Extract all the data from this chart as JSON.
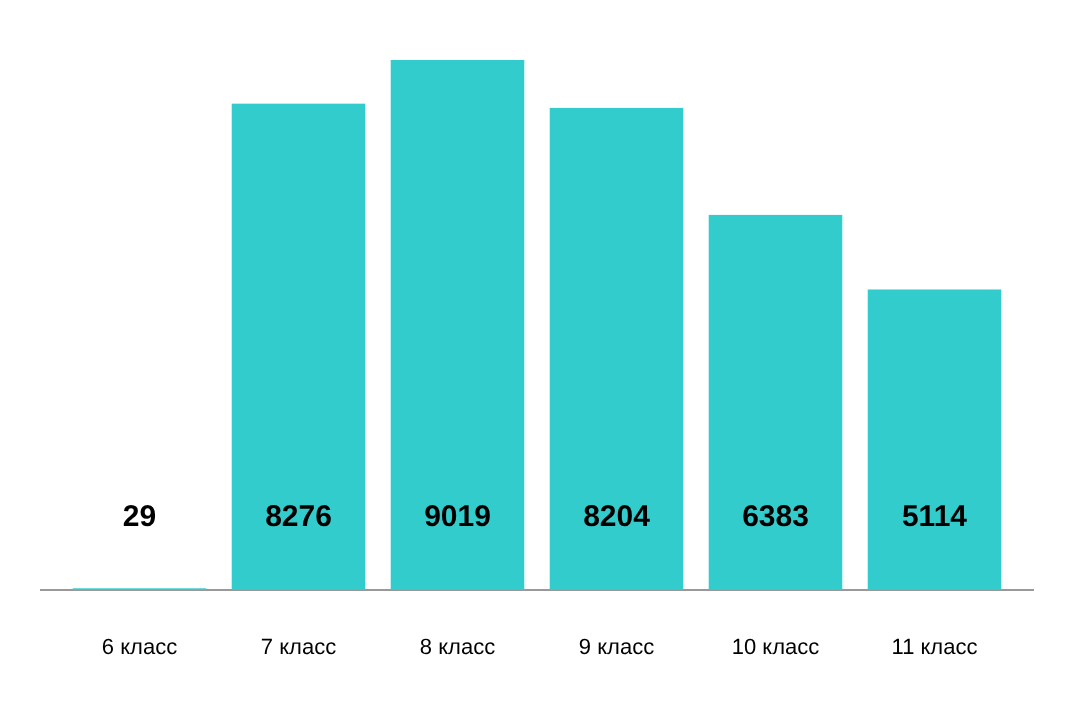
{
  "chart_data": {
    "type": "bar",
    "categories": [
      "6 класс",
      "7 класс",
      "8 класс",
      "9 класс",
      "10 класс",
      "11 класс"
    ],
    "values": [
      29,
      8276,
      9019,
      8204,
      6383,
      5114
    ],
    "color": "#33cccc",
    "data_labels": true,
    "ylim": [
      0,
      9019
    ]
  }
}
